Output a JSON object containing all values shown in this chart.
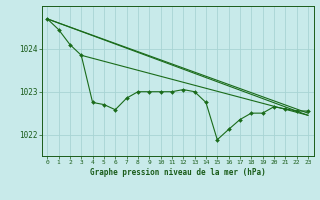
{
  "title": "Graphe pression niveau de la mer (hPa)",
  "background_color": "#c8eaea",
  "grid_color": "#a8d4d4",
  "line_color": "#1a6b1a",
  "text_color": "#1a5c1a",
  "xlim": [
    -0.5,
    23.5
  ],
  "ylim": [
    1021.5,
    1025.0
  ],
  "yticks": [
    1022,
    1023,
    1024
  ],
  "xticks": [
    0,
    1,
    2,
    3,
    4,
    5,
    6,
    7,
    8,
    9,
    10,
    11,
    12,
    13,
    14,
    15,
    16,
    17,
    18,
    19,
    20,
    21,
    22,
    23
  ],
  "envelope_lines": [
    {
      "x": [
        0,
        23
      ],
      "y": [
        1024.7,
        1022.5
      ]
    },
    {
      "x": [
        0,
        23
      ],
      "y": [
        1024.7,
        1022.45
      ]
    },
    {
      "x": [
        3,
        23
      ],
      "y": [
        1023.85,
        1022.45
      ]
    }
  ],
  "main_series_x": [
    0,
    1,
    2,
    3,
    4,
    5,
    6,
    7,
    8,
    9,
    10,
    11,
    12,
    13,
    14,
    15,
    16,
    17,
    18,
    19,
    20,
    21,
    22,
    23
  ],
  "main_series_y": [
    1024.7,
    1024.45,
    1024.1,
    1023.85,
    1022.75,
    1022.7,
    1022.58,
    1022.85,
    1023.0,
    1023.0,
    1023.0,
    1023.0,
    1023.05,
    1023.0,
    1022.75,
    1021.88,
    1022.12,
    1022.35,
    1022.5,
    1022.5,
    1022.65,
    1022.6,
    1022.55,
    1022.55
  ]
}
